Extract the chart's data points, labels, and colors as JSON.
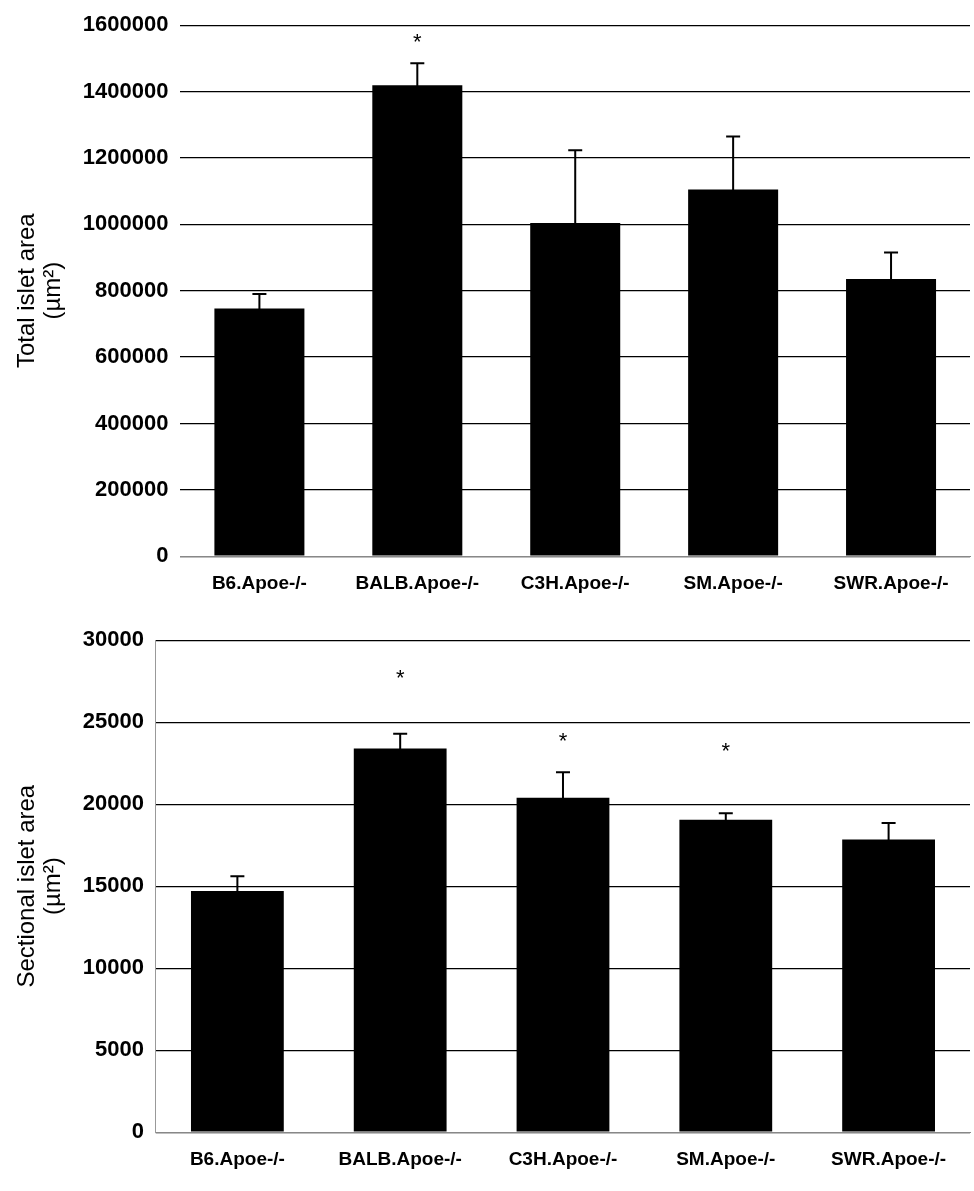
{
  "chart_data": [
    {
      "type": "bar",
      "ylabel": "Total islet area\n(µm²)",
      "categories": [
        "B6.Apoe-/-",
        "BALB.Apoe-/-",
        "C3H.Apoe-/-",
        "SM.Apoe-/-",
        "SWR.Apoe-/-"
      ],
      "values": [
        746000,
        1419000,
        1004000,
        1105000,
        835000
      ],
      "errors": [
        44000,
        66000,
        219000,
        160000,
        80000
      ],
      "color": "#000000",
      "ylim": [
        0,
        1600000
      ],
      "yticks": [
        0,
        200000,
        400000,
        600000,
        800000,
        1000000,
        1200000,
        1400000,
        1600000
      ],
      "grid": "y",
      "annotations": [
        "*"
      ]
    },
    {
      "type": "bar",
      "ylabel": "Sectional islet area\n(µm²)",
      "categories": [
        "B6.Apoe-/-",
        "BALB.Apoe-/-",
        "C3H.Apoe-/-",
        "SM.Apoe-/-",
        "SWR.Apoe-/-"
      ],
      "values": [
        14700,
        23400,
        20400,
        19050,
        17850
      ],
      "errors": [
        900,
        900,
        1550,
        400,
        1000
      ],
      "color": "#000000",
      "ylim": [
        0,
        30000
      ],
      "yticks": [
        0,
        5000,
        10000,
        15000,
        20000,
        25000,
        30000
      ],
      "grid": "y",
      "annotations": [
        "*",
        "*",
        "*"
      ]
    }
  ]
}
